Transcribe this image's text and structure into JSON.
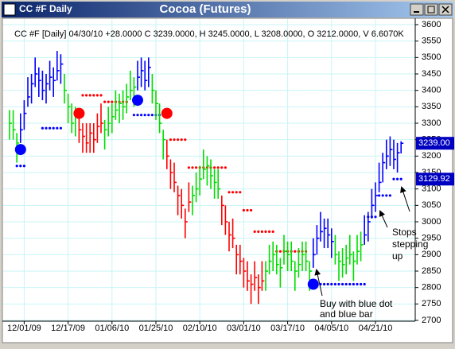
{
  "window_title": "CC #F Daily",
  "chart_data": {
    "type": "ohlc",
    "title": "Cocoa (Futures)",
    "header": "CC #F [Daily] 04/30/10 +28.0000 C 3239.0000, H 3245.0000, L 3208.0000, O 3212.0000, V 6.6070K",
    "categories": [
      null,
      null,
      null,
      null,
      "12/01/09",
      null,
      null,
      null,
      null,
      null,
      null,
      null,
      null,
      null,
      null,
      null,
      "12/17/09",
      null,
      null,
      null,
      null,
      null,
      null,
      null,
      null,
      null,
      null,
      null,
      "01/06/10",
      null,
      null,
      null,
      null,
      null,
      null,
      null,
      null,
      null,
      null,
      null,
      "01/25/10",
      null,
      null,
      null,
      null,
      null,
      null,
      null,
      null,
      null,
      null,
      null,
      "02/10/10",
      null,
      null,
      null,
      null,
      null,
      null,
      null,
      null,
      null,
      null,
      null,
      "03/01/10",
      null,
      null,
      null,
      null,
      null,
      null,
      null,
      null,
      null,
      null,
      null,
      "03/17/10",
      null,
      null,
      null,
      null,
      null,
      null,
      null,
      null,
      null,
      null,
      null,
      "04/05/10",
      null,
      null,
      null,
      null,
      null,
      null,
      null,
      null,
      null,
      null,
      null,
      "04/21/10",
      null,
      null,
      null,
      null,
      null,
      null,
      null
    ],
    "high": [
      3340,
      3340,
      3270,
      3330,
      3370,
      3440,
      3450,
      3500,
      3470,
      3460,
      3450,
      3490,
      3470,
      3520,
      3510,
      3450,
      3390,
      3360,
      3350,
      3330,
      3300,
      3300,
      3300,
      3300,
      3330,
      3360,
      3310,
      3350,
      3360,
      3400,
      3390,
      3400,
      3420,
      3460,
      3440,
      3490,
      3500,
      3490,
      3500,
      3450,
      3400,
      3360,
      3280,
      3250,
      3190,
      3180,
      3110,
      3100,
      3040,
      3120,
      3110,
      3150,
      3170,
      3220,
      3200,
      3190,
      3160,
      3160,
      3080,
      3050,
      3000,
      3010,
      2930,
      2930,
      2890,
      2880,
      2840,
      2880,
      2840,
      2880,
      2880,
      2930,
      2940,
      2930,
      2890,
      2960,
      2940,
      2940,
      2880,
      2920,
      2940,
      2940,
      2880,
      2950,
      2990,
      3030,
      3010,
      3010,
      2980,
      2960,
      2910,
      2920,
      2930,
      2960,
      2910,
      2960,
      2970,
      3020,
      3030,
      3100,
      3120,
      3180,
      3210,
      3250,
      3260,
      3250,
      3240,
      3245
    ],
    "low": [
      3250,
      3250,
      3180,
      3240,
      3280,
      3350,
      3360,
      3410,
      3380,
      3370,
      3360,
      3400,
      3380,
      3430,
      3420,
      3360,
      3300,
      3270,
      3260,
      3240,
      3210,
      3210,
      3210,
      3210,
      3240,
      3270,
      3220,
      3260,
      3270,
      3310,
      3300,
      3310,
      3330,
      3370,
      3350,
      3400,
      3410,
      3400,
      3410,
      3360,
      3310,
      3270,
      3190,
      3160,
      3100,
      3090,
      3020,
      3010,
      2950,
      3030,
      3020,
      3060,
      3080,
      3130,
      3110,
      3100,
      3070,
      3070,
      2990,
      2960,
      2910,
      2920,
      2840,
      2840,
      2800,
      2790,
      2750,
      2790,
      2750,
      2790,
      2790,
      2840,
      2850,
      2840,
      2800,
      2870,
      2850,
      2850,
      2790,
      2830,
      2850,
      2850,
      2790,
      2860,
      2900,
      2940,
      2920,
      2920,
      2890,
      2870,
      2820,
      2830,
      2840,
      2870,
      2820,
      2870,
      2880,
      2930,
      2940,
      3010,
      3030,
      3090,
      3120,
      3160,
      3170,
      3160,
      3150,
      3208
    ],
    "close": [
      3300,
      3280,
      3240,
      3280,
      3330,
      3380,
      3420,
      3450,
      3430,
      3400,
      3420,
      3440,
      3430,
      3460,
      3480,
      3400,
      3350,
      3300,
      3320,
      3280,
      3260,
      3240,
      3270,
      3250,
      3290,
      3300,
      3280,
      3300,
      3320,
      3340,
      3360,
      3350,
      3380,
      3400,
      3410,
      3440,
      3460,
      3430,
      3470,
      3400,
      3360,
      3300,
      3250,
      3200,
      3150,
      3120,
      3080,
      3050,
      3000,
      3060,
      3080,
      3100,
      3130,
      3160,
      3170,
      3140,
      3120,
      3100,
      3050,
      3000,
      2960,
      2950,
      2900,
      2880,
      2850,
      2820,
      2810,
      2830,
      2800,
      2820,
      2850,
      2880,
      2900,
      2870,
      2860,
      2910,
      2900,
      2880,
      2850,
      2870,
      2900,
      2880,
      2850,
      2900,
      2950,
      2970,
      2980,
      2960,
      2940,
      2900,
      2880,
      2870,
      2890,
      2900,
      2880,
      2910,
      2930,
      2960,
      3000,
      3050,
      3080,
      3120,
      3180,
      3200,
      3220,
      3190,
      3210,
      3239
    ],
    "bar_colors": [
      "#00dd00",
      "#00dd00",
      "#00dd00",
      "#0000ff",
      "#0000ff",
      "#0000ff",
      "#0000ff",
      "#0000ff",
      "#0000ff",
      "#0000ff",
      "#0000ff",
      "#0000ff",
      "#0000ff",
      "#0000ff",
      "#0000ff",
      "#00dd00",
      "#00dd00",
      "#00dd00",
      "#00dd00",
      "#ff0000",
      "#ff0000",
      "#ff0000",
      "#ff0000",
      "#ff0000",
      "#ff0000",
      "#ff0000",
      "#00dd00",
      "#00dd00",
      "#00dd00",
      "#00dd00",
      "#00dd00",
      "#00dd00",
      "#00dd00",
      "#00dd00",
      "#00dd00",
      "#0000ff",
      "#0000ff",
      "#0000ff",
      "#0000ff",
      "#00dd00",
      "#00dd00",
      "#00dd00",
      "#00dd00",
      "#ff0000",
      "#ff0000",
      "#ff0000",
      "#ff0000",
      "#ff0000",
      "#ff0000",
      "#ff0000",
      "#00dd00",
      "#00dd00",
      "#00dd00",
      "#00dd00",
      "#00dd00",
      "#00dd00",
      "#00dd00",
      "#00dd00",
      "#ff0000",
      "#ff0000",
      "#ff0000",
      "#ff0000",
      "#ff0000",
      "#ff0000",
      "#ff0000",
      "#ff0000",
      "#ff0000",
      "#ff0000",
      "#ff0000",
      "#ff0000",
      "#00dd00",
      "#00dd00",
      "#00dd00",
      "#00dd00",
      "#00dd00",
      "#00dd00",
      "#00dd00",
      "#00dd00",
      "#00dd00",
      "#00dd00",
      "#00dd00",
      "#00dd00",
      "#00dd00",
      "#0000ff",
      "#0000ff",
      "#0000ff",
      "#0000ff",
      "#0000ff",
      "#0000ff",
      "#00dd00",
      "#00dd00",
      "#00dd00",
      "#00dd00",
      "#00dd00",
      "#00dd00",
      "#00dd00",
      "#00dd00",
      "#0000ff",
      "#0000ff",
      "#0000ff",
      "#0000ff",
      "#0000ff",
      "#0000ff",
      "#0000ff",
      "#0000ff",
      "#0000ff",
      "#0000ff",
      "#0000ff"
    ],
    "stops": [
      {
        "color": "#0000ff",
        "values": [
          null,
          null,
          3170,
          3170,
          3170,
          null,
          null,
          null,
          null,
          3285,
          3285,
          3285,
          3285,
          3285,
          3285,
          null,
          null,
          null,
          null,
          null,
          null,
          null,
          null,
          null,
          null,
          null,
          null,
          null,
          null,
          null,
          null,
          null,
          null,
          null,
          3325,
          3325,
          3325,
          3325,
          3325,
          3325,
          3325,
          3325,
          3325,
          null,
          null,
          null,
          null,
          null,
          null,
          null,
          null,
          null,
          null,
          null,
          null,
          null,
          null,
          null,
          null,
          null,
          null,
          null,
          null,
          null,
          null,
          null,
          null,
          null,
          null,
          null,
          null,
          null,
          null,
          null,
          null,
          null,
          null,
          null,
          null,
          null,
          null,
          null,
          2810,
          2810,
          2810,
          2810,
          2810,
          2810,
          2810,
          2810,
          2810,
          2810,
          2810,
          2810,
          2810,
          2810,
          2810,
          2810,
          3015,
          3015,
          3015,
          3080,
          3080,
          3080,
          3080,
          3130,
          3130,
          3130
        ]
      },
      {
        "color": "#ff0000",
        "values": [
          null,
          null,
          null,
          null,
          null,
          null,
          null,
          null,
          null,
          null,
          null,
          null,
          null,
          null,
          null,
          null,
          null,
          null,
          null,
          null,
          3385,
          3385,
          3385,
          3385,
          3385,
          3385,
          3365,
          3365,
          3365,
          3365,
          3365,
          3365,
          3365,
          null,
          null,
          null,
          null,
          null,
          null,
          null,
          null,
          null,
          null,
          null,
          3250,
          3250,
          3250,
          3250,
          3250,
          3165,
          3165,
          3165,
          3165,
          3165,
          3165,
          3165,
          3165,
          3165,
          3165,
          3165,
          3090,
          3090,
          3090,
          3090,
          3035,
          3035,
          3035,
          2970,
          2970,
          2970,
          2970,
          2970,
          2970,
          2910,
          2910,
          2910,
          2910,
          2910,
          2910,
          2910,
          2910,
          2910,
          null,
          null,
          null,
          null,
          null,
          null,
          null,
          null,
          null,
          null,
          null,
          null,
          null,
          null,
          null,
          null,
          null,
          null,
          null,
          null,
          null,
          null,
          null,
          null,
          null,
          null
        ]
      }
    ],
    "signals": [
      {
        "index": 3,
        "value": 3220,
        "color": "#0000ff"
      },
      {
        "index": 19,
        "value": 3330,
        "color": "#ff0000"
      },
      {
        "index": 35,
        "value": 3370,
        "color": "#0000ff"
      },
      {
        "index": 43,
        "value": 3330,
        "color": "#ff0000"
      },
      {
        "index": 83,
        "value": 2810,
        "color": "#0000ff"
      }
    ],
    "price_labels": [
      {
        "value": 3239,
        "label": "3239.00"
      },
      {
        "value": 3129.92,
        "label": "3129.92"
      }
    ],
    "ylim": [
      2700,
      3600
    ],
    "yticks": [
      2700,
      2750,
      2800,
      2850,
      2900,
      2950,
      3000,
      3050,
      3100,
      3150,
      3200,
      3250,
      3300,
      3350,
      3400,
      3450,
      3500,
      3550,
      3600
    ],
    "grid": true,
    "grid_color": "#c8f4f4",
    "annotations": [
      [
        "Buy with blue dot",
        "and blue bar"
      ],
      [
        "Stops",
        "stepping",
        "up"
      ]
    ]
  }
}
